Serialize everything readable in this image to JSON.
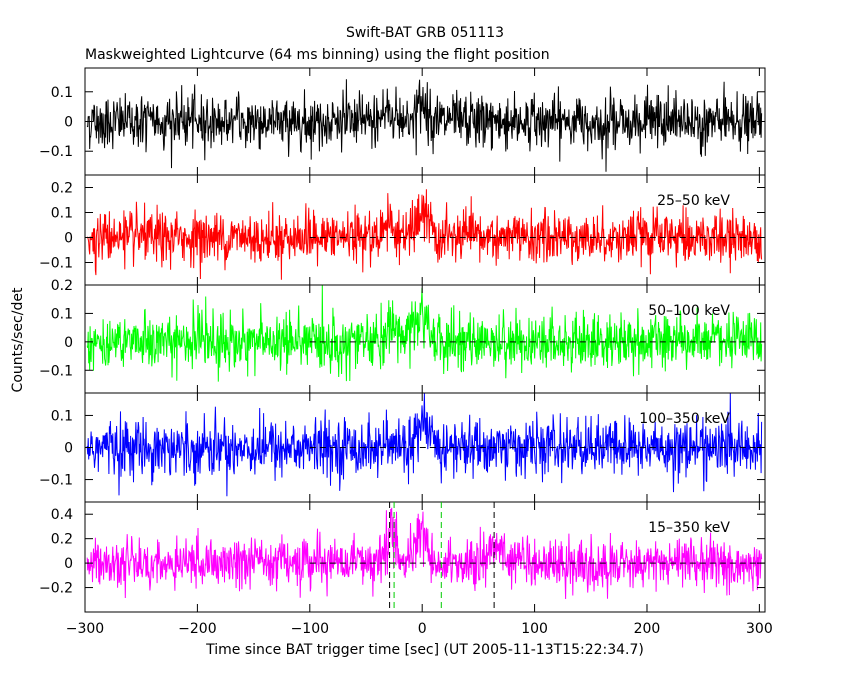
{
  "chart_data": {
    "type": "line",
    "title": "Swift-BAT GRB 051113",
    "subtitle": "Maskweighted Lightcurve (64 ms binning) using the flight position",
    "xlabel": "Time since BAT trigger time [sec] (UT 2005-11-13T15:22:34.7)",
    "ylabel": "Counts/sec/det",
    "xlim": [
      -300,
      305
    ],
    "x_ticks": [
      "−300",
      "−200",
      "−100",
      "0",
      "100",
      "200",
      "300"
    ],
    "x_tick_values": [
      -300,
      -200,
      -100,
      0,
      100,
      200,
      300
    ],
    "panels": [
      {
        "name": "",
        "label": "",
        "color": "#000000",
        "ylim": [
          -0.18,
          0.18
        ],
        "y_ticks": [
          "0.1",
          "0",
          "−0.1"
        ],
        "y_tick_values": [
          0.1,
          0,
          -0.1
        ],
        "noise_sd": 0.045,
        "peaks": [
          [
            -30,
            0.03
          ],
          [
            0,
            0.05
          ]
        ],
        "zero_line": false
      },
      {
        "name": "25-50 keV",
        "label": "25–50 keV",
        "color": "#ff0000",
        "ylim": [
          -0.19,
          0.25
        ],
        "y_ticks": [
          "0.2",
          "0.1",
          "0",
          "−0.1"
        ],
        "y_tick_values": [
          0.2,
          0.1,
          0,
          -0.1
        ],
        "noise_sd": 0.05,
        "peaks": [
          [
            -30,
            0.06
          ],
          [
            0,
            0.09
          ]
        ],
        "zero_line": true
      },
      {
        "name": "50-100 keV",
        "label": "50–100 keV",
        "color": "#00ff00",
        "ylim": [
          -0.18,
          0.2
        ],
        "y_ticks": [
          "0.2",
          "0.1",
          "0",
          "−0.1"
        ],
        "y_tick_values": [
          0.2,
          0.1,
          0,
          -0.1
        ],
        "noise_sd": 0.05,
        "peaks": [
          [
            -25,
            0.05
          ],
          [
            0,
            0.08
          ]
        ],
        "zero_line": true
      },
      {
        "name": "100-350 keV",
        "label": "100–350 keV",
        "color": "#0000ff",
        "ylim": [
          -0.17,
          0.17
        ],
        "y_ticks": [
          "0.1",
          "0",
          "−0.1"
        ],
        "y_tick_values": [
          0.1,
          0,
          -0.1
        ],
        "noise_sd": 0.045,
        "peaks": [
          [
            0,
            0.06
          ]
        ],
        "zero_line": true
      },
      {
        "name": "15-350 keV",
        "label": "15–350 keV",
        "color": "#ff00ff",
        "ylim": [
          -0.4,
          0.5
        ],
        "y_ticks": [
          "0.4",
          "0.2",
          "0",
          "−0.2"
        ],
        "y_tick_values": [
          0.4,
          0.2,
          0,
          -0.2
        ],
        "noise_sd": 0.1,
        "peaks": [
          [
            -28,
            0.2
          ],
          [
            -2,
            0.25
          ],
          [
            65,
            0.15
          ]
        ],
        "zero_line": true
      }
    ],
    "zero_line_xrange": [
      -100,
      305
    ],
    "vertical_markers": [
      {
        "x": -25,
        "color": "#00cc00",
        "style": "dashed"
      },
      {
        "x": 17,
        "color": "#00cc00",
        "style": "dashed"
      },
      {
        "x": -29,
        "color": "#000000",
        "style": "dashed"
      },
      {
        "x": 64,
        "color": "#000000",
        "style": "dashed"
      }
    ]
  }
}
